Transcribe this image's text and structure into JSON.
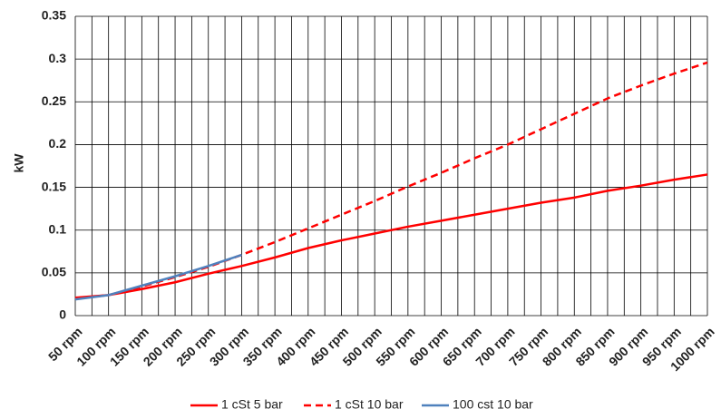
{
  "chart_data": {
    "type": "line",
    "y_label": "kW",
    "categories": [
      "50 rpm",
      "100 rpm",
      "150 rpm",
      "200 rpm",
      "250 rpm",
      "300 rpm",
      "350 rpm",
      "400 rpm",
      "450 rpm",
      "500 rpm",
      "550 rpm",
      "600 rpm",
      "650 rpm",
      "700 rpm",
      "750 rpm",
      "800 rpm",
      "850 rpm",
      "900 rpm",
      "950 rpm",
      "1000 rpm"
    ],
    "series": [
      {
        "name": "1 cSt 5 bar",
        "color": "#ff0000",
        "dash": "solid",
        "values": [
          0.021,
          0.024,
          0.031,
          0.039,
          0.049,
          0.058,
          0.068,
          0.079,
          0.088,
          0.096,
          0.104,
          0.111,
          0.118,
          0.125,
          0.132,
          0.138,
          0.146,
          0.152,
          0.159,
          0.165
        ]
      },
      {
        "name": "1 cSt 10 bar",
        "color": "#ff0000",
        "dash": "dashed",
        "values": [
          0.02,
          0.024,
          0.034,
          0.045,
          0.057,
          0.071,
          0.086,
          0.102,
          0.118,
          0.134,
          0.151,
          0.167,
          0.184,
          0.2,
          0.218,
          0.236,
          0.254,
          0.269,
          0.283,
          0.296
        ]
      },
      {
        "name": "100 cst 10 bar",
        "color": "#4f81bd",
        "dash": "solid",
        "values": [
          0.019,
          0.024,
          0.035,
          0.046,
          0.058,
          0.071,
          null,
          null,
          null,
          null,
          null,
          null,
          null,
          null,
          null,
          null,
          null,
          null,
          null,
          null
        ]
      }
    ],
    "ylim": [
      0,
      0.35
    ],
    "yticks": [
      0,
      0.05,
      0.1,
      0.15,
      0.2,
      0.25,
      0.3,
      0.35
    ],
    "grid": true,
    "legend": "bottom"
  }
}
